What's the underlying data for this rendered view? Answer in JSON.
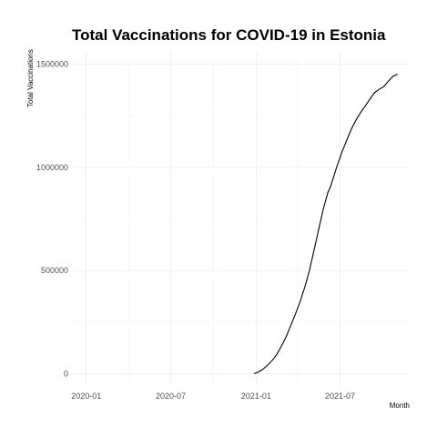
{
  "chart_data": {
    "type": "line",
    "title": "Total Vaccinations for COVID-19 in Estonia",
    "xlabel": "Month",
    "ylabel": "Total Vaccinations",
    "x_ticks": [
      "2020-01",
      "2020-07",
      "2021-01",
      "2021-07"
    ],
    "y_ticks": [
      0,
      500000,
      1000000,
      1500000
    ],
    "xlim": [
      "2019-12-01",
      "2021-11-28"
    ],
    "ylim": [
      -60000,
      1560000
    ],
    "grid": true,
    "legend": "none",
    "series": [
      {
        "x": [
          "2020-12-27",
          "2021-01-06",
          "2021-01-16",
          "2021-01-26",
          "2021-02-05",
          "2021-02-15",
          "2021-02-25",
          "2021-03-07",
          "2021-03-17",
          "2021-03-27",
          "2021-04-06",
          "2021-04-16",
          "2021-04-26",
          "2021-05-06",
          "2021-05-16",
          "2021-05-26",
          "2021-06-05",
          "2021-06-10",
          "2021-06-15",
          "2021-06-25",
          "2021-07-05",
          "2021-07-15",
          "2021-07-25",
          "2021-08-04",
          "2021-08-14",
          "2021-08-24",
          "2021-09-03",
          "2021-09-13",
          "2021-09-23",
          "2021-10-03",
          "2021-10-13",
          "2021-10-23",
          "2021-11-02"
        ],
        "values": [
          0,
          8000,
          22000,
          42000,
          65000,
          95000,
          135000,
          180000,
          235000,
          290000,
          350000,
          420000,
          500000,
          600000,
          700000,
          800000,
          880000,
          905000,
          940000,
          1010000,
          1075000,
          1130000,
          1185000,
          1228000,
          1265000,
          1298000,
          1330000,
          1362000,
          1378000,
          1392000,
          1418000,
          1442000,
          1452000
        ]
      }
    ]
  }
}
